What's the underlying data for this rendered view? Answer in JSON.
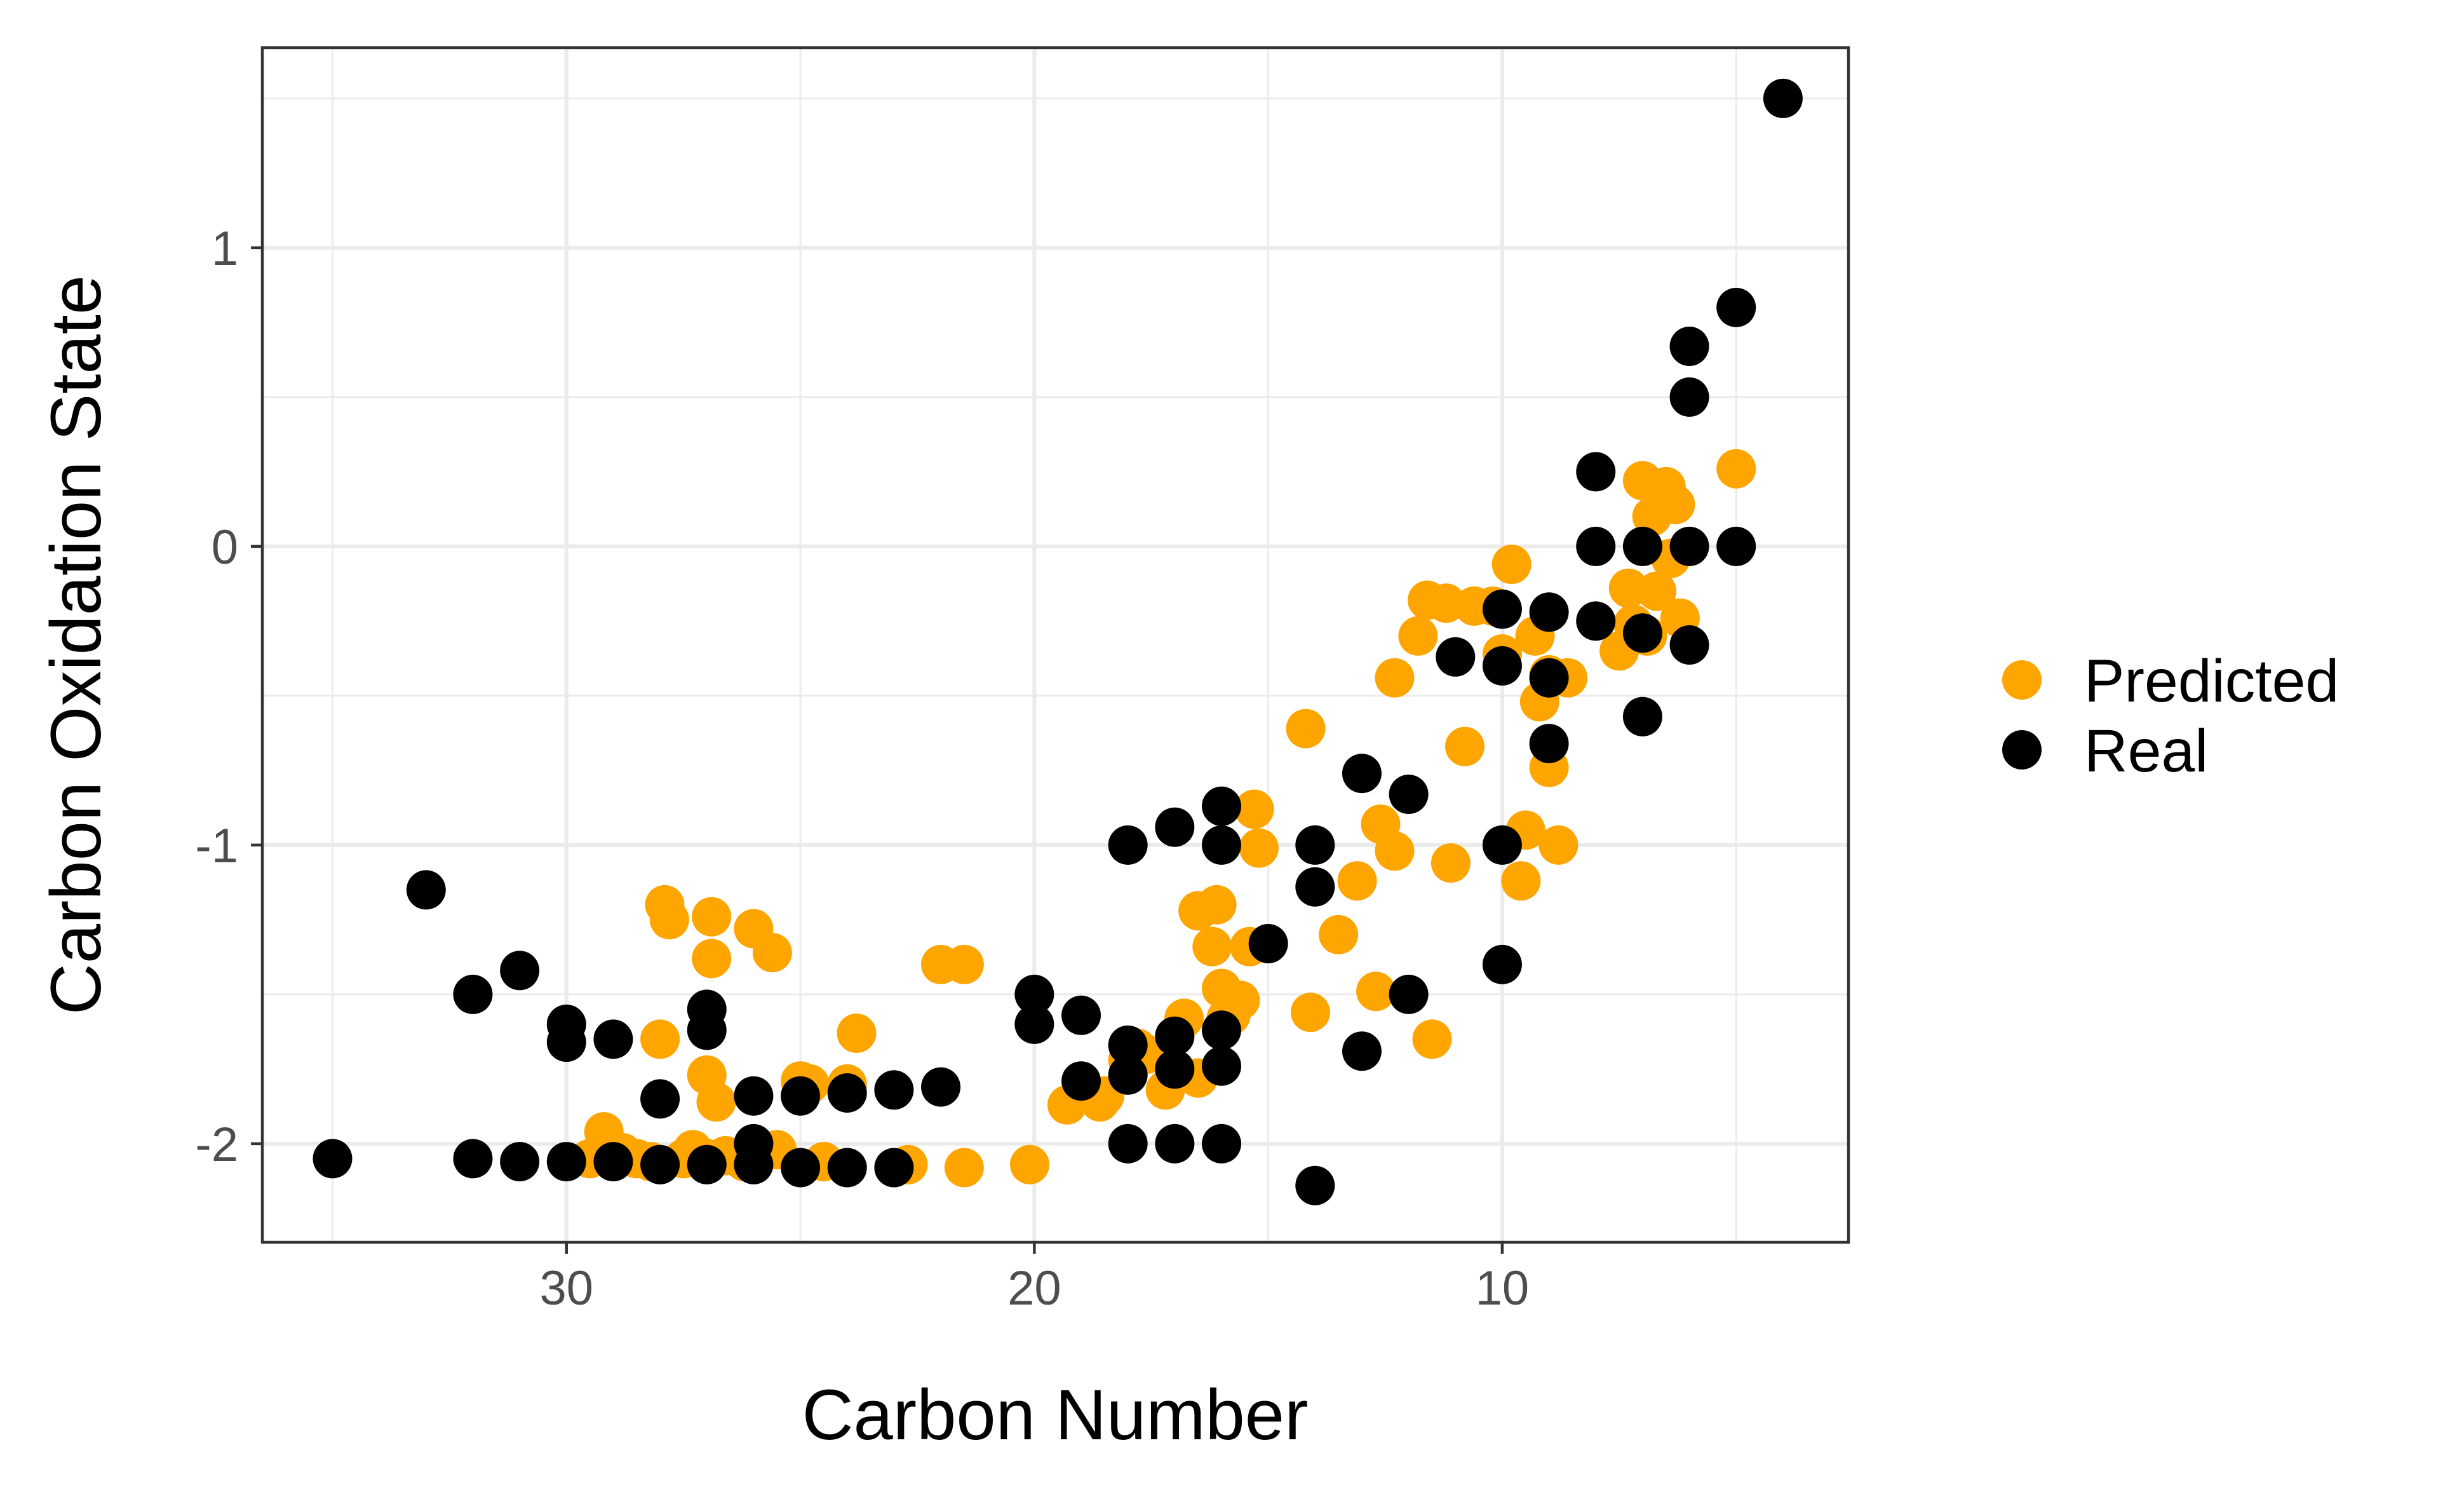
{
  "chart_data": {
    "type": "scatter",
    "title": "",
    "xlabel": "Carbon Number",
    "ylabel": "Carbon Oxidation State",
    "x_reversed": true,
    "xlim": [
      36.5,
      2.6
    ],
    "ylim": [
      -2.33,
      1.67
    ],
    "x_ticks": [
      30,
      20,
      10
    ],
    "x_tick_labels": [
      "30",
      "20",
      "10"
    ],
    "y_ticks": [
      1,
      0,
      -1,
      -2
    ],
    "y_tick_labels": [
      "1",
      "0",
      "-1",
      "-2"
    ],
    "grid": true,
    "legend_position": "right",
    "series": [
      {
        "name": "Predicted",
        "color": "#ffa500",
        "points": [
          [
            29.5,
            -2.05
          ],
          [
            29.2,
            -1.96
          ],
          [
            28.8,
            -2.03
          ],
          [
            28.5,
            -2.05
          ],
          [
            28.2,
            -2.06
          ],
          [
            28.0,
            -1.65
          ],
          [
            27.9,
            -1.2
          ],
          [
            27.8,
            -1.25
          ],
          [
            27.5,
            -2.05
          ],
          [
            27.3,
            -2.02
          ],
          [
            27.0,
            -1.77
          ],
          [
            27.0,
            -2.05
          ],
          [
            26.9,
            -1.38
          ],
          [
            26.9,
            -1.24
          ],
          [
            26.8,
            -1.86
          ],
          [
            26.6,
            -2.04
          ],
          [
            26.2,
            -2.06
          ],
          [
            26.0,
            -1.28
          ],
          [
            25.6,
            -1.36
          ],
          [
            25.5,
            -2.02
          ],
          [
            25.0,
            -1.79
          ],
          [
            24.8,
            -1.8
          ],
          [
            24.5,
            -2.06
          ],
          [
            24.0,
            -1.8
          ],
          [
            23.8,
            -1.63
          ],
          [
            22.7,
            -2.07
          ],
          [
            22.0,
            -1.4
          ],
          [
            21.5,
            -1.4
          ],
          [
            21.5,
            -2.08
          ],
          [
            20.1,
            -2.07
          ],
          [
            19.3,
            -1.87
          ],
          [
            19.0,
            -1.83
          ],
          [
            18.6,
            -1.86
          ],
          [
            18.5,
            -1.84
          ],
          [
            18.0,
            -1.72
          ],
          [
            17.8,
            -1.68
          ],
          [
            17.6,
            -1.7
          ],
          [
            17.2,
            -1.82
          ],
          [
            17.0,
            -1.64
          ],
          [
            16.8,
            -1.58
          ],
          [
            16.5,
            -1.78
          ],
          [
            16.5,
            -1.22
          ],
          [
            16.2,
            -1.34
          ],
          [
            16.1,
            -1.2
          ],
          [
            16.0,
            -1.48
          ],
          [
            15.9,
            -1.58
          ],
          [
            15.8,
            -1.57
          ],
          [
            15.6,
            -1.52
          ],
          [
            15.4,
            -1.34
          ],
          [
            15.3,
            -0.88
          ],
          [
            15.2,
            -1.01
          ],
          [
            14.2,
            -0.61
          ],
          [
            14.1,
            -1.56
          ],
          [
            13.5,
            -1.3
          ],
          [
            13.1,
            -1.12
          ],
          [
            12.7,
            -1.49
          ],
          [
            12.6,
            -0.93
          ],
          [
            12.3,
            -1.02
          ],
          [
            12.3,
            -0.44
          ],
          [
            11.8,
            -0.3
          ],
          [
            11.6,
            -0.18
          ],
          [
            11.5,
            -1.65
          ],
          [
            11.2,
            -0.19
          ],
          [
            11.1,
            -1.06
          ],
          [
            10.8,
            -0.67
          ],
          [
            10.6,
            -0.2
          ],
          [
            10.2,
            -0.2
          ],
          [
            10.0,
            -0.36
          ],
          [
            9.8,
            -0.06
          ],
          [
            9.6,
            -1.12
          ],
          [
            9.5,
            -0.95
          ],
          [
            9.3,
            -0.3
          ],
          [
            9.2,
            -0.52
          ],
          [
            9.0,
            -0.74
          ],
          [
            9.0,
            -0.43
          ],
          [
            8.8,
            -1.0
          ],
          [
            8.6,
            -0.44
          ],
          [
            7.5,
            -0.35
          ],
          [
            7.3,
            -0.14
          ],
          [
            7.2,
            -0.26
          ],
          [
            7.0,
            0.22
          ],
          [
            6.9,
            -0.3
          ],
          [
            6.8,
            0.1
          ],
          [
            6.7,
            -0.15
          ],
          [
            6.5,
            0.2
          ],
          [
            6.4,
            -0.04
          ],
          [
            6.3,
            0.14
          ],
          [
            6.2,
            -0.24
          ],
          [
            5.0,
            0.26
          ]
        ]
      },
      {
        "name": "Real",
        "color": "#000000",
        "points": [
          [
            35.0,
            -2.05
          ],
          [
            33.0,
            -1.15
          ],
          [
            32.0,
            -2.05
          ],
          [
            32.0,
            -1.5
          ],
          [
            31.0,
            -2.06
          ],
          [
            31.0,
            -1.42
          ],
          [
            30.0,
            -1.6
          ],
          [
            30.0,
            -1.66
          ],
          [
            30.0,
            -2.06
          ],
          [
            29.0,
            -1.65
          ],
          [
            29.0,
            -2.06
          ],
          [
            28.0,
            -1.85
          ],
          [
            28.0,
            -2.07
          ],
          [
            27.0,
            -1.55
          ],
          [
            27.0,
            -1.62
          ],
          [
            27.0,
            -2.07
          ],
          [
            26.0,
            -1.84
          ],
          [
            26.0,
            -2.0
          ],
          [
            26.0,
            -2.07
          ],
          [
            25.0,
            -1.84
          ],
          [
            25.0,
            -2.08
          ],
          [
            24.0,
            -1.83
          ],
          [
            24.0,
            -2.08
          ],
          [
            23.0,
            -1.82
          ],
          [
            23.0,
            -2.08
          ],
          [
            22.0,
            -1.81
          ],
          [
            20.0,
            -1.5
          ],
          [
            20.0,
            -1.6
          ],
          [
            19.0,
            -1.57
          ],
          [
            19.0,
            -1.79
          ],
          [
            18.0,
            -1.0
          ],
          [
            18.0,
            -1.67
          ],
          [
            18.0,
            -1.77
          ],
          [
            18.0,
            -2.0
          ],
          [
            17.0,
            -0.94
          ],
          [
            17.0,
            -1.64
          ],
          [
            17.0,
            -1.75
          ],
          [
            17.0,
            -2.0
          ],
          [
            16.0,
            -0.87
          ],
          [
            16.0,
            -1.0
          ],
          [
            16.0,
            -1.62
          ],
          [
            16.0,
            -1.74
          ],
          [
            16.0,
            -2.0
          ],
          [
            15.0,
            -1.33
          ],
          [
            14.0,
            -1.0
          ],
          [
            14.0,
            -1.14
          ],
          [
            14.0,
            -2.14
          ],
          [
            13.0,
            -0.76
          ],
          [
            13.0,
            -1.69
          ],
          [
            12.0,
            -0.83
          ],
          [
            12.0,
            -1.5
          ],
          [
            11.0,
            -0.37
          ],
          [
            10.0,
            -0.21
          ],
          [
            10.0,
            -0.4
          ],
          [
            10.0,
            -1.0
          ],
          [
            10.0,
            -1.4
          ],
          [
            9.0,
            -0.22
          ],
          [
            9.0,
            -0.44
          ],
          [
            9.0,
            -0.66
          ],
          [
            8.0,
            0.25
          ],
          [
            8.0,
            0.0
          ],
          [
            8.0,
            -0.25
          ],
          [
            7.0,
            0.0
          ],
          [
            7.0,
            -0.29
          ],
          [
            7.0,
            -0.57
          ],
          [
            6.0,
            0.67
          ],
          [
            6.0,
            0.5
          ],
          [
            6.0,
            0.0
          ],
          [
            6.0,
            -0.33
          ],
          [
            5.0,
            0.8
          ],
          [
            5.0,
            0.0
          ],
          [
            4.0,
            1.5
          ]
        ]
      }
    ]
  }
}
